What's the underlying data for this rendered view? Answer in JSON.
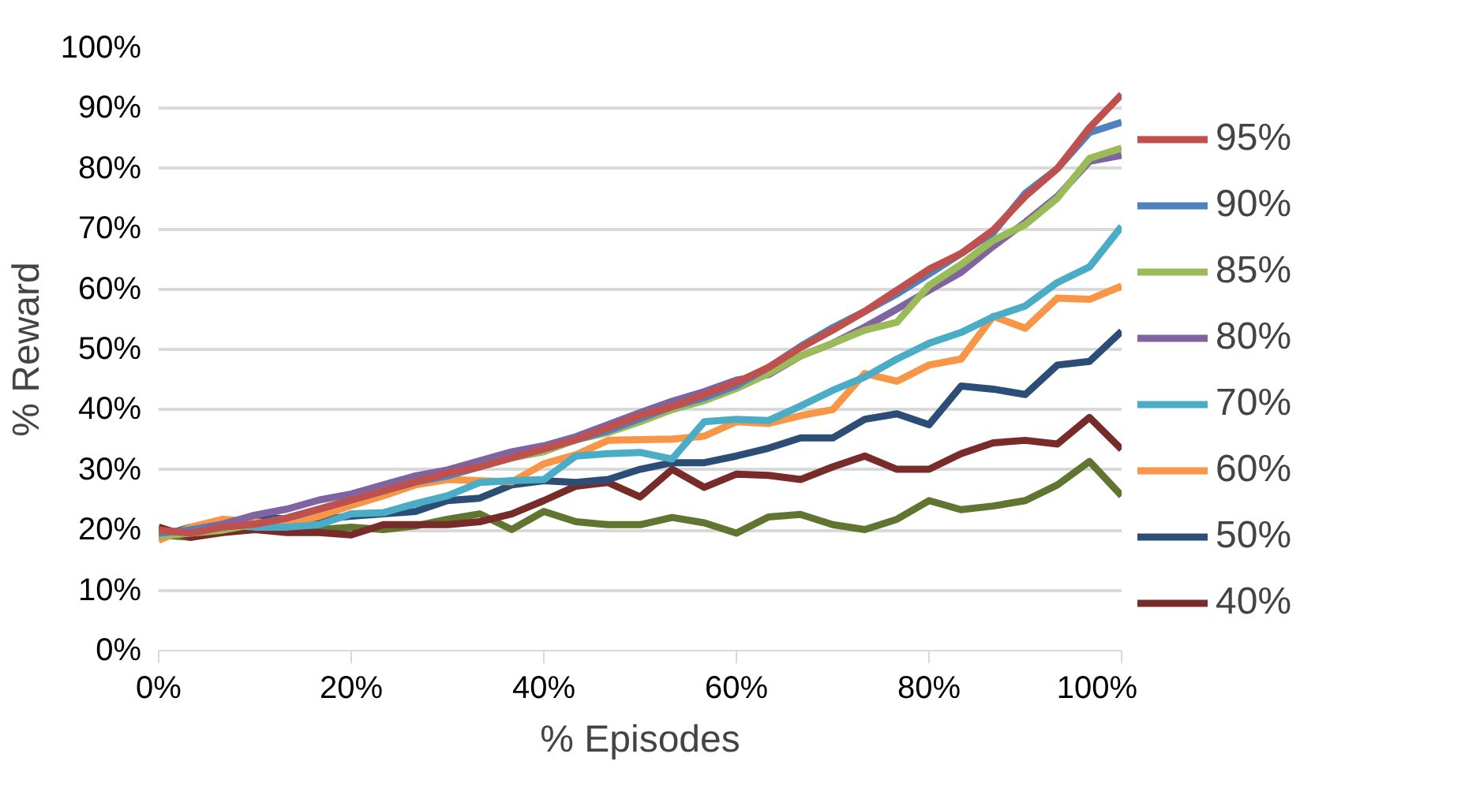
{
  "chart_data": {
    "type": "line",
    "xlabel": "% Episodes",
    "ylabel": "% Reward",
    "x": [
      0,
      3.33,
      6.67,
      10,
      13.33,
      16.67,
      20,
      23.33,
      26.67,
      30,
      33.33,
      36.67,
      40,
      43.33,
      46.67,
      50,
      53.33,
      56.67,
      60,
      63.33,
      66.67,
      70,
      73.33,
      76.67,
      80,
      83.33,
      86.67,
      90,
      93.33,
      96.67,
      100
    ],
    "xlim": [
      0,
      100
    ],
    "ylim": [
      0,
      100
    ],
    "xticks": [
      {
        "value": 0,
        "label": "0%"
      },
      {
        "value": 20,
        "label": "20%"
      },
      {
        "value": 40,
        "label": "40%"
      },
      {
        "value": 60,
        "label": "60%"
      },
      {
        "value": 80,
        "label": "80%"
      },
      {
        "value": 100,
        "label": "100%"
      }
    ],
    "yticks": [
      {
        "value": 0,
        "label": "0%"
      },
      {
        "value": 10,
        "label": "10%"
      },
      {
        "value": 20,
        "label": "20%"
      },
      {
        "value": 30,
        "label": "30%"
      },
      {
        "value": 40,
        "label": "40%"
      },
      {
        "value": 50,
        "label": "50%"
      },
      {
        "value": 60,
        "label": "60%"
      },
      {
        "value": 70,
        "label": "70%"
      },
      {
        "value": 80,
        "label": "80%"
      },
      {
        "value": 90,
        "label": "90%"
      },
      {
        "value": 100,
        "label": "100%"
      }
    ],
    "grid": "y",
    "legend": "right",
    "marker": "none",
    "line_style": "solid",
    "series": [
      {
        "name": "95%",
        "color": "#c0504d",
        "values": [
          20,
          19.5,
          20.5,
          21,
          22,
          23.5,
          25,
          26.5,
          28,
          29.5,
          30.5,
          32,
          33.5,
          35,
          37,
          39,
          40.5,
          42.5,
          44.5,
          47,
          50.3,
          53.2,
          56.3,
          59.8,
          63.3,
          65.9,
          69.8,
          75.4,
          80.0,
          86.8,
          92.3
        ]
      },
      {
        "name": "90%",
        "color": "#4f81bd",
        "values": [
          19.5,
          20,
          20.5,
          21,
          22,
          23.5,
          25,
          26.5,
          28,
          29,
          30.5,
          32,
          33.5,
          35,
          36.5,
          38.5,
          40.5,
          42,
          44,
          47,
          50.5,
          53.6,
          56.3,
          59.2,
          62.5,
          65.9,
          69.4,
          75.9,
          80.0,
          86.0,
          87.7
        ]
      },
      {
        "name": "85%",
        "color": "#9bbb59",
        "values": [
          19,
          19.5,
          20,
          21,
          22,
          23.5,
          25,
          26.5,
          28,
          29,
          30.5,
          32,
          33,
          35,
          36.2,
          38,
          40,
          41.5,
          43.5,
          46,
          48.9,
          51.0,
          53.2,
          54.5,
          60.6,
          64.1,
          68.1,
          70.7,
          75.1,
          81.7,
          83.4
        ]
      },
      {
        "name": "80%",
        "color": "#8064a2",
        "values": [
          19,
          20,
          21,
          22.5,
          23.5,
          25,
          26,
          27.5,
          29,
          30,
          31.5,
          33,
          34,
          35.5,
          37.5,
          39.5,
          41.4,
          43,
          44.9,
          45.8,
          48.9,
          51.0,
          53.7,
          56.7,
          59.8,
          62.8,
          67.1,
          71.1,
          75.4,
          81.2,
          82.2
        ]
      },
      {
        "name": "70%",
        "color": "#4bacc6",
        "values": [
          19.2,
          20.1,
          20.9,
          20.5,
          20.5,
          20.9,
          22.7,
          22.9,
          24.4,
          25.7,
          27.9,
          28.2,
          28.4,
          32.3,
          32.7,
          32.9,
          31.8,
          38.0,
          38.4,
          38.2,
          40.6,
          43.2,
          45.4,
          48.4,
          51.0,
          52.8,
          55.4,
          57.2,
          61.1,
          63.7,
          70.4
        ]
      },
      {
        "name": "60%",
        "color": "#f79646",
        "values": [
          18.3,
          20.5,
          21.8,
          21.4,
          20.9,
          22.3,
          24.1,
          25.7,
          27.5,
          28.4,
          28.2,
          28.0,
          31.0,
          32.5,
          34.9,
          35.0,
          35.1,
          35.6,
          38.0,
          37.7,
          39.0,
          40.0,
          46.0,
          44.7,
          47.4,
          48.4,
          55.5,
          53.5,
          58.5,
          58.3,
          60.5
        ]
      },
      {
        "name": "50%",
        "color": "#2c4d75",
        "values": [
          18.9,
          20.5,
          20.9,
          22.4,
          21.8,
          21.8,
          22.3,
          22.7,
          23.1,
          24.9,
          25.3,
          27.5,
          28.2,
          27.9,
          28.4,
          30.1,
          31.2,
          31.2,
          32.3,
          33.6,
          35.3,
          35.3,
          38.4,
          39.3,
          37.5,
          43.9,
          43.4,
          42.5,
          47.4,
          48.0,
          53.0
        ]
      },
      {
        "name": "40%",
        "color": "#772c2a",
        "values": [
          20.5,
          18.8,
          19.6,
          20.1,
          19.6,
          19.6,
          19.2,
          20.9,
          20.9,
          20.9,
          21.4,
          22.7,
          24.9,
          27.3,
          27.9,
          25.5,
          30.1,
          27.1,
          29.3,
          29.1,
          28.4,
          30.5,
          32.3,
          30.1,
          30.1,
          32.7,
          34.5,
          34.9,
          34.3,
          38.7,
          33.4
        ]
      },
      {
        "color": "#5f7530",
        "values": [
          19.2,
          18.8,
          20.1,
          20.7,
          20.5,
          20.1,
          20.5,
          20.1,
          20.7,
          21.8,
          22.7,
          20.1,
          23.1,
          21.4,
          20.9,
          20.9,
          22.1,
          21.2,
          19.5,
          22.2,
          22.6,
          20.9,
          20.1,
          21.8,
          24.9,
          23.4,
          24.0,
          24.9,
          27.5,
          31.4,
          25.7
        ]
      }
    ]
  }
}
